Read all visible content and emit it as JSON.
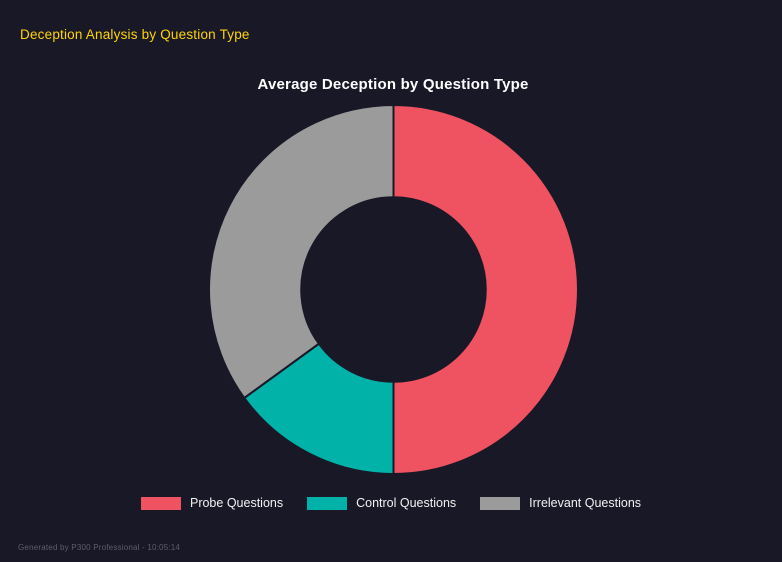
{
  "page": {
    "title": "Deception Analysis by Question Type",
    "footer": "Generated by P300 Professional - 10:05:14"
  },
  "chart_data": {
    "type": "pie",
    "subtype": "donut",
    "title": "Average Deception by Question Type",
    "labels": [
      "Probe Questions",
      "Control Questions",
      "Irrelevant Questions"
    ],
    "values": [
      50,
      15,
      35
    ],
    "unit": "percent-of-ring",
    "colors": [
      "#ef5260",
      "#00b2a8",
      "#9b9b9b"
    ],
    "start_angle_deg": 0,
    "direction": "clockwise",
    "inner_radius_ratio": 0.5,
    "legend_position": "bottom",
    "background": "#181827"
  },
  "theme": {
    "background": "#181827",
    "report_title_color": "#ffd400",
    "chart_title_color": "#ffffff",
    "legend_text_color": "#f2f2f2",
    "footer_text_color": "#5d5d6c"
  }
}
